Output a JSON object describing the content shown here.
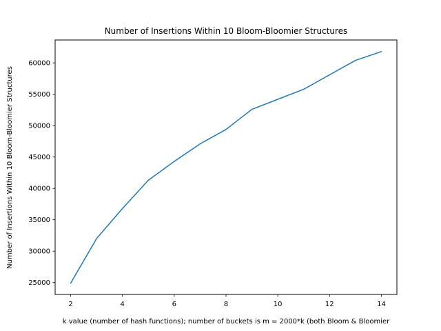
{
  "chart_data": {
    "type": "line",
    "title": "Number of Insertions Within 10 Bloom-Bloomier Structures",
    "xlabel": "k value (number of hash functions); number of buckets is m = 2000*k (both Bloom & Bloomier",
    "ylabel": "Number of Insertions Within 10 Bloom-Bloomier Structures",
    "xlim": [
      1.4,
      14.6
    ],
    "ylim": [
      23100,
      63650
    ],
    "xticks": [
      2,
      4,
      6,
      8,
      10,
      12,
      14
    ],
    "yticks": [
      25000,
      30000,
      35000,
      40000,
      45000,
      50000,
      55000,
      60000
    ],
    "grid": false,
    "series": [
      {
        "color": "#1f77b4",
        "x": [
          2,
          3,
          4,
          5,
          6,
          7,
          8,
          9,
          10,
          11,
          12,
          13,
          14
        ],
        "y": [
          24900,
          32000,
          36800,
          41300,
          44300,
          47100,
          49400,
          52600,
          54200,
          55800,
          58100,
          60400,
          61800
        ]
      }
    ]
  }
}
